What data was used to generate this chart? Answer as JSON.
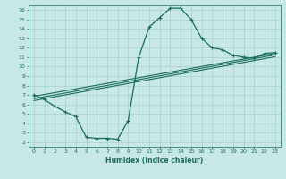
{
  "bg_color": "#c8e8e5",
  "grid_color": "#a8d0cc",
  "line_color": "#1a6b5e",
  "xlabel": "Humidex (Indice chaleur)",
  "xlim": [
    -0.5,
    23.5
  ],
  "ylim": [
    1.5,
    16.5
  ],
  "xticks": [
    0,
    1,
    2,
    3,
    4,
    5,
    6,
    7,
    8,
    9,
    10,
    11,
    12,
    13,
    14,
    15,
    16,
    17,
    18,
    19,
    20,
    21,
    22,
    23
  ],
  "yticks": [
    2,
    3,
    4,
    5,
    6,
    7,
    8,
    9,
    10,
    11,
    12,
    13,
    14,
    15,
    16
  ],
  "line1_x": [
    0,
    1,
    2,
    3,
    4,
    5,
    6,
    7,
    8,
    9,
    10,
    11,
    12,
    13,
    14,
    15,
    16,
    17,
    18,
    19,
    20,
    21,
    22,
    23
  ],
  "line1_y": [
    7.0,
    6.5,
    5.8,
    5.2,
    4.7,
    2.5,
    2.4,
    2.4,
    2.3,
    4.3,
    11.0,
    14.2,
    15.2,
    16.2,
    16.2,
    15.0,
    13.0,
    12.0,
    11.8,
    11.2,
    11.0,
    10.9,
    11.4,
    11.5
  ],
  "line2_x": [
    0,
    23
  ],
  "line2_y": [
    6.85,
    11.4
  ],
  "line3_x": [
    0,
    23
  ],
  "line3_y": [
    6.6,
    11.25
  ],
  "line4_x": [
    0,
    23
  ],
  "line4_y": [
    6.4,
    11.05
  ]
}
